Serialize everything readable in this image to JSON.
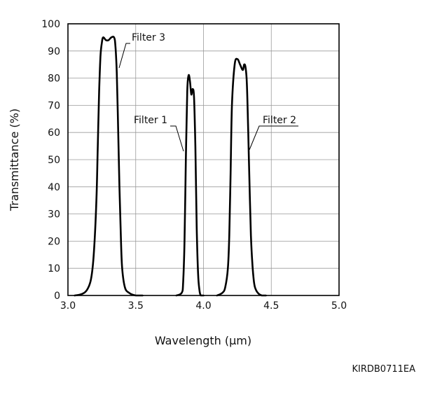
{
  "chart_data": {
    "type": "line",
    "title": "",
    "xlabel": "Wavelength (μm)",
    "ylabel": "Transmittance (%)",
    "xlim": [
      3.0,
      5.0
    ],
    "ylim": [
      0,
      100
    ],
    "x_ticks": [
      3.0,
      3.5,
      4.0,
      4.5,
      5.0
    ],
    "x_tick_labels": [
      "3.0",
      "3.5",
      "4.0",
      "4.5",
      "5.0"
    ],
    "y_ticks": [
      0,
      10,
      20,
      30,
      40,
      50,
      60,
      70,
      80,
      90,
      100
    ],
    "y_tick_labels": [
      "0",
      "10",
      "20",
      "30",
      "40",
      "50",
      "60",
      "70",
      "80",
      "90",
      "100"
    ],
    "grid": true,
    "legend": "none",
    "series": [
      {
        "name": "Filter 3",
        "x": [
          3.05,
          3.1,
          3.14,
          3.17,
          3.19,
          3.21,
          3.22,
          3.23,
          3.24,
          3.25,
          3.26,
          3.28,
          3.3,
          3.32,
          3.34,
          3.35,
          3.36,
          3.37,
          3.38,
          3.39,
          3.4,
          3.42,
          3.45,
          3.5,
          3.55
        ],
        "y": [
          0,
          0.5,
          2,
          6,
          15,
          35,
          55,
          75,
          88,
          93,
          95,
          94,
          94,
          95,
          95,
          92,
          82,
          62,
          40,
          22,
          10,
          3,
          1,
          0,
          0
        ]
      },
      {
        "name": "Filter 1",
        "x": [
          3.8,
          3.84,
          3.85,
          3.86,
          3.87,
          3.88,
          3.89,
          3.9,
          3.91,
          3.92,
          3.93,
          3.94,
          3.95,
          3.96,
          3.97,
          3.98,
          4.0
        ],
        "y": [
          0,
          1,
          5,
          20,
          50,
          75,
          81,
          79,
          74,
          76,
          73,
          55,
          25,
          8,
          2,
          0,
          0
        ]
      },
      {
        "name": "Filter 2",
        "x": [
          4.1,
          4.14,
          4.16,
          4.18,
          4.19,
          4.2,
          4.21,
          4.23,
          4.25,
          4.27,
          4.29,
          4.3,
          4.31,
          4.32,
          4.33,
          4.34,
          4.35,
          4.36,
          4.37,
          4.38,
          4.4,
          4.43,
          4.46
        ],
        "y": [
          0,
          1,
          3,
          10,
          22,
          45,
          70,
          85,
          87,
          85,
          83,
          85,
          84,
          78,
          60,
          40,
          22,
          12,
          6,
          3,
          1,
          0,
          0
        ]
      }
    ],
    "annotations": [
      "Filter 3",
      "Filter 1",
      "Filter 2",
      "KIRDB0711EA"
    ]
  }
}
